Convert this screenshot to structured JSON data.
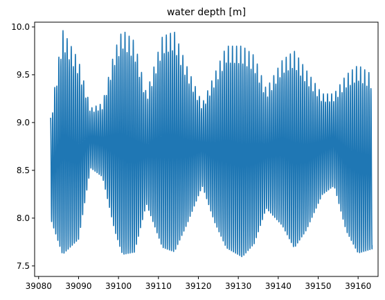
{
  "chart_data": {
    "type": "line",
    "title": "water depth [m]",
    "xlabel": "",
    "ylabel": "",
    "xlim": [
      39079,
      39165
    ],
    "ylim": [
      7.39,
      10.05
    ],
    "xticks": [
      39080,
      39090,
      39100,
      39110,
      39120,
      39130,
      39140,
      39150,
      39160
    ],
    "yticks": [
      7.5,
      8.0,
      8.5,
      9.0,
      9.5,
      10.0
    ],
    "ytick_labels": [
      "7.5",
      "8.0",
      "8.5",
      "9.0",
      "9.5",
      "10.0"
    ],
    "grid": false,
    "legend": "none",
    "series": [
      {
        "color": "#1f77b4",
        "x_start": 39083.0,
        "x_end": 39163.5,
        "tidal_period_days": 0.5175,
        "mean_level": 8.75,
        "x_envelope": [
          39083,
          39086,
          39090,
          39093,
          39096,
          39099,
          39101,
          39104,
          39107,
          39111,
          39114,
          39117,
          39121,
          39124,
          39127,
          39131,
          39134,
          39137,
          39141,
          39144,
          39147,
          39151,
          39154,
          39157,
          39160,
          39163.5
        ],
        "high_envelope": [
          9.05,
          9.97,
          9.65,
          9.15,
          9.2,
          9.75,
          9.97,
          9.85,
          9.3,
          9.9,
          9.95,
          9.6,
          9.2,
          9.5,
          9.8,
          9.8,
          9.7,
          9.35,
          9.65,
          9.75,
          9.55,
          9.3,
          9.3,
          9.5,
          9.6,
          9.5
        ],
        "low_envelope": [
          7.95,
          7.52,
          7.7,
          8.5,
          8.4,
          7.8,
          7.52,
          7.55,
          8.1,
          7.6,
          7.55,
          7.85,
          8.3,
          7.9,
          7.6,
          7.5,
          7.65,
          8.05,
          7.85,
          7.6,
          7.8,
          8.2,
          8.3,
          7.8,
          7.55,
          7.6
        ]
      }
    ]
  }
}
